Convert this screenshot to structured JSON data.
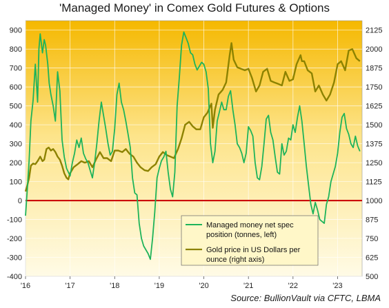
{
  "title": "'Managed Money' in Comex Gold Futures & Options",
  "source": "Source: BullionVault via CFTC, LBMA",
  "colors": {
    "managed_money": "#1db35a",
    "gold_price": "#8c8200",
    "zero_line": "#cc0000",
    "bg_top": "#f5b800",
    "bg_bottom": "#fffbe6",
    "legend_bg": "#fff7c8"
  },
  "chart_data": {
    "type": "line",
    "grid": true,
    "legend_position": "bottom-right",
    "x_ticks": [
      "'16",
      "'17",
      "'18",
      "'19",
      "'20",
      "'21",
      "'22",
      "'23"
    ],
    "xlim": [
      2016.0,
      2023.55
    ],
    "left_axis": {
      "label": "",
      "ylim": [
        -400,
        950
      ],
      "ticks": [
        "-400",
        "-300",
        "-200",
        "-100",
        "0",
        "100",
        "200",
        "300",
        "400",
        "500",
        "600",
        "700",
        "800",
        "900"
      ]
    },
    "right_axis": {
      "label": "",
      "ylim": [
        500,
        2187.5
      ],
      "ticks": [
        "500",
        "625",
        "750",
        "875",
        "1000",
        "1125",
        "1250",
        "1375",
        "1500",
        "1625",
        "1750",
        "1875",
        "2000",
        "2125"
      ]
    },
    "series": [
      {
        "name": "Managed money net spec position (tonnes, left)",
        "axis": "left",
        "color": "#1db35a",
        "x": [
          2016.0,
          2016.04,
          2016.08,
          2016.12,
          2016.17,
          2016.22,
          2016.27,
          2016.3,
          2016.33,
          2016.38,
          2016.42,
          2016.45,
          2016.5,
          2016.53,
          2016.57,
          2016.62,
          2016.67,
          2016.72,
          2016.77,
          2016.82,
          2016.87,
          2016.92,
          2016.96,
          2017.0,
          2017.05,
          2017.1,
          2017.15,
          2017.2,
          2017.25,
          2017.3,
          2017.35,
          2017.4,
          2017.45,
          2017.5,
          2017.55,
          2017.6,
          2017.65,
          2017.7,
          2017.75,
          2017.8,
          2017.85,
          2017.9,
          2017.95,
          2018.0,
          2018.05,
          2018.1,
          2018.15,
          2018.2,
          2018.25,
          2018.3,
          2018.35,
          2018.4,
          2018.45,
          2018.5,
          2018.55,
          2018.6,
          2018.65,
          2018.7,
          2018.75,
          2018.8,
          2018.85,
          2018.9,
          2018.95,
          2019.0,
          2019.05,
          2019.1,
          2019.15,
          2019.2,
          2019.25,
          2019.3,
          2019.35,
          2019.4,
          2019.45,
          2019.5,
          2019.55,
          2019.6,
          2019.65,
          2019.7,
          2019.75,
          2019.8,
          2019.85,
          2019.9,
          2019.95,
          2020.0,
          2020.05,
          2020.1,
          2020.15,
          2020.2,
          2020.25,
          2020.3,
          2020.35,
          2020.4,
          2020.45,
          2020.5,
          2020.55,
          2020.6,
          2020.65,
          2020.7,
          2020.75,
          2020.8,
          2020.85,
          2020.9,
          2020.95,
          2021.0,
          2021.05,
          2021.1,
          2021.15,
          2021.2,
          2021.25,
          2021.3,
          2021.35,
          2021.4,
          2021.45,
          2021.5,
          2021.55,
          2021.6,
          2021.65,
          2021.7,
          2021.75,
          2021.8,
          2021.85,
          2021.9,
          2021.95,
          2022.0,
          2022.05,
          2022.1,
          2022.15,
          2022.2,
          2022.25,
          2022.3,
          2022.35,
          2022.4,
          2022.45,
          2022.5,
          2022.55,
          2022.6,
          2022.65,
          2022.7,
          2022.75,
          2022.8,
          2022.85,
          2022.9,
          2022.95,
          2023.0,
          2023.05,
          2023.1,
          2023.15,
          2023.2,
          2023.25,
          2023.3,
          2023.35,
          2023.4,
          2023.45,
          2023.5
        ],
        "values": [
          -80,
          60,
          210,
          420,
          530,
          720,
          520,
          800,
          880,
          780,
          850,
          820,
          720,
          620,
          560,
          500,
          420,
          680,
          580,
          320,
          230,
          170,
          150,
          130,
          200,
          250,
          320,
          280,
          330,
          250,
          220,
          200,
          160,
          120,
          200,
          300,
          420,
          520,
          450,
          380,
          300,
          240,
          260,
          380,
          560,
          620,
          520,
          480,
          420,
          350,
          280,
          120,
          40,
          30,
          -120,
          -200,
          -240,
          -260,
          -280,
          -310,
          -200,
          -60,
          120,
          170,
          210,
          230,
          260,
          150,
          60,
          20,
          150,
          500,
          650,
          820,
          890,
          860,
          830,
          780,
          770,
          720,
          690,
          710,
          730,
          720,
          680,
          590,
          300,
          200,
          260,
          420,
          470,
          520,
          480,
          480,
          550,
          580,
          480,
          400,
          300,
          280,
          250,
          200,
          250,
          390,
          370,
          340,
          200,
          120,
          110,
          180,
          300,
          430,
          450,
          360,
          320,
          230,
          150,
          140,
          300,
          240,
          260,
          330,
          320,
          400,
          360,
          440,
          500,
          420,
          300,
          180,
          80,
          -20,
          -70,
          -10,
          -50,
          -100,
          -110,
          -120,
          -20,
          20,
          100,
          140,
          180,
          250,
          360,
          440,
          460,
          380,
          350,
          300,
          280,
          340,
          290,
          260
        ]
      },
      {
        "name": "Gold price in US Dollars per ounce (right axis)",
        "axis": "right",
        "color": "#8c8200",
        "x": [
          2016.0,
          2016.04,
          2016.08,
          2016.12,
          2016.17,
          2016.22,
          2016.27,
          2016.33,
          2016.38,
          2016.42,
          2016.47,
          2016.52,
          2016.57,
          2016.62,
          2016.67,
          2016.72,
          2016.77,
          2016.82,
          2016.87,
          2016.92,
          2016.96,
          2017.0,
          2017.08,
          2017.17,
          2017.25,
          2017.33,
          2017.42,
          2017.5,
          2017.58,
          2017.67,
          2017.75,
          2017.83,
          2017.92,
          2018.0,
          2018.08,
          2018.17,
          2018.25,
          2018.33,
          2018.42,
          2018.5,
          2018.58,
          2018.67,
          2018.75,
          2018.83,
          2018.92,
          2019.0,
          2019.08,
          2019.17,
          2019.25,
          2019.33,
          2019.42,
          2019.5,
          2019.58,
          2019.67,
          2019.75,
          2019.83,
          2019.92,
          2020.0,
          2020.08,
          2020.17,
          2020.2,
          2020.25,
          2020.33,
          2020.42,
          2020.5,
          2020.58,
          2020.62,
          2020.67,
          2020.75,
          2020.83,
          2020.92,
          2021.0,
          2021.08,
          2021.17,
          2021.25,
          2021.33,
          2021.42,
          2021.5,
          2021.58,
          2021.67,
          2021.75,
          2021.83,
          2021.92,
          2022.0,
          2022.08,
          2022.17,
          2022.2,
          2022.25,
          2022.33,
          2022.42,
          2022.5,
          2022.58,
          2022.67,
          2022.75,
          2022.83,
          2022.92,
          2023.0,
          2023.08,
          2023.17,
          2023.25,
          2023.33,
          2023.42,
          2023.5
        ],
        "values": [
          1060,
          1100,
          1150,
          1230,
          1245,
          1240,
          1260,
          1290,
          1260,
          1270,
          1340,
          1350,
          1330,
          1340,
          1320,
          1290,
          1270,
          1230,
          1180,
          1150,
          1140,
          1180,
          1220,
          1240,
          1260,
          1250,
          1260,
          1220,
          1270,
          1320,
          1280,
          1280,
          1260,
          1330,
          1330,
          1320,
          1340,
          1310,
          1290,
          1250,
          1220,
          1200,
          1195,
          1220,
          1240,
          1290,
          1320,
          1300,
          1290,
          1280,
          1340,
          1410,
          1500,
          1520,
          1490,
          1470,
          1470,
          1550,
          1580,
          1640,
          1480,
          1600,
          1700,
          1730,
          1780,
          1960,
          2040,
          1930,
          1880,
          1870,
          1860,
          1870,
          1810,
          1720,
          1760,
          1850,
          1870,
          1790,
          1780,
          1770,
          1760,
          1850,
          1790,
          1800,
          1900,
          1960,
          1920,
          1920,
          1860,
          1840,
          1720,
          1760,
          1700,
          1660,
          1700,
          1780,
          1900,
          1920,
          1860,
          1990,
          2000,
          1940,
          1920
        ]
      }
    ]
  }
}
